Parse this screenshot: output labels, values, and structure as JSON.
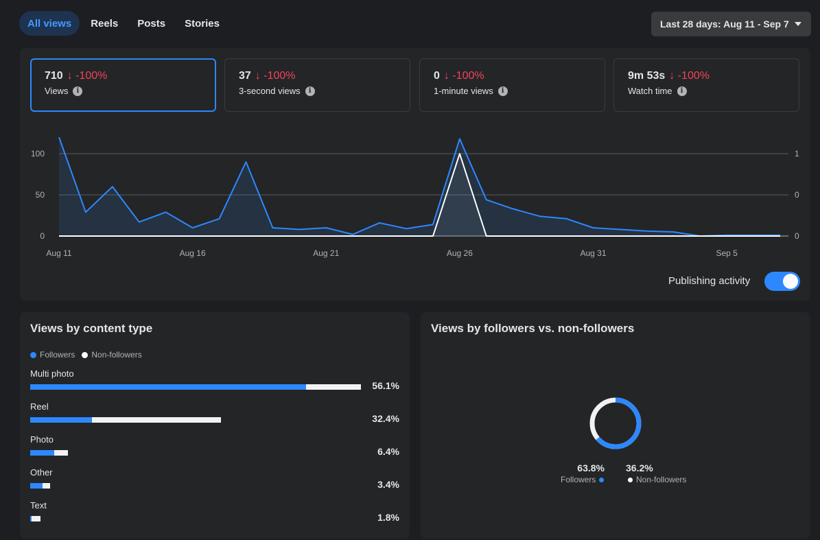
{
  "tabs": [
    {
      "label": "All views",
      "active": true
    },
    {
      "label": "Reels",
      "active": false
    },
    {
      "label": "Posts",
      "active": false
    },
    {
      "label": "Stories",
      "active": false
    }
  ],
  "date_range": {
    "label": "Last 28 days: Aug 11 - Sep 7"
  },
  "metrics": [
    {
      "value": "710",
      "change": "↓ -100%",
      "label": "Views",
      "selected": true
    },
    {
      "value": "37",
      "change": "↓ -100%",
      "label": "3-second views",
      "selected": false
    },
    {
      "value": "0",
      "change": "↓ -100%",
      "label": "1-minute views",
      "selected": false
    },
    {
      "value": "9m 53s",
      "change": "↓ -100%",
      "label": "Watch time",
      "selected": false
    }
  ],
  "publishing_activity": {
    "label": "Publishing activity",
    "enabled": true
  },
  "colors": {
    "accent": "#2d88ff",
    "negative": "#f3425f",
    "card": "#242526",
    "page": "#1c1e21"
  },
  "chart_data": {
    "type": "line",
    "x": [
      "Aug 11",
      "Aug 12",
      "Aug 13",
      "Aug 14",
      "Aug 15",
      "Aug 16",
      "Aug 17",
      "Aug 18",
      "Aug 19",
      "Aug 20",
      "Aug 21",
      "Aug 22",
      "Aug 23",
      "Aug 24",
      "Aug 25",
      "Aug 26",
      "Aug 27",
      "Aug 28",
      "Aug 29",
      "Aug 30",
      "Aug 31",
      "Sep 1",
      "Sep 2",
      "Sep 3",
      "Sep 4",
      "Sep 5",
      "Sep 6",
      "Sep 7"
    ],
    "x_tick_labels": [
      "Aug 11",
      "Aug 16",
      "Aug 21",
      "Aug 26",
      "Aug 31",
      "Sep 5"
    ],
    "y_ticks_left": [
      "0",
      "50",
      "100"
    ],
    "y_ticks_right": [
      "0",
      "0",
      "1"
    ],
    "ylim_left": [
      0,
      125
    ],
    "ylim_right": [
      0,
      1.25
    ],
    "grid": true,
    "series": [
      {
        "axis": "left",
        "color": "#2d88ff",
        "values": [
          120,
          29,
          60,
          17,
          29,
          10,
          21,
          90,
          10,
          8,
          10,
          2,
          16,
          9,
          14,
          118,
          44,
          33,
          24,
          21,
          10,
          8,
          6,
          5,
          0,
          1,
          1,
          1
        ]
      },
      {
        "axis": "right",
        "color": "#ffffff",
        "values": [
          0,
          0,
          0,
          0,
          0,
          0,
          0,
          0,
          0,
          0,
          0,
          0,
          0,
          0,
          0,
          1,
          0,
          0,
          0,
          0,
          0,
          0,
          0,
          0,
          0,
          0,
          0,
          0
        ]
      }
    ]
  },
  "content_type": {
    "title": "Views by content type",
    "legend": {
      "followers": "Followers",
      "non_followers": "Non-followers"
    },
    "rows": [
      {
        "name": "Multi photo",
        "pct": "56.1%",
        "value": 56.1,
        "follower_share": 0.835
      },
      {
        "name": "Reel",
        "pct": "32.4%",
        "value": 32.4,
        "follower_share": 0.325
      },
      {
        "name": "Photo",
        "pct": "6.4%",
        "value": 6.4,
        "follower_share": 0.63
      },
      {
        "name": "Other",
        "pct": "3.4%",
        "value": 3.4,
        "follower_share": 0.6
      },
      {
        "name": "Text",
        "pct": "1.8%",
        "value": 1.8,
        "follower_share": 0.15
      }
    ]
  },
  "followers": {
    "title": "Views by followers vs. non-followers",
    "followers_pct": "63.8%",
    "followers_value": 63.8,
    "followers_label": "Followers",
    "non_followers_pct": "36.2%",
    "non_followers_value": 36.2,
    "non_followers_label": "Non-followers"
  }
}
